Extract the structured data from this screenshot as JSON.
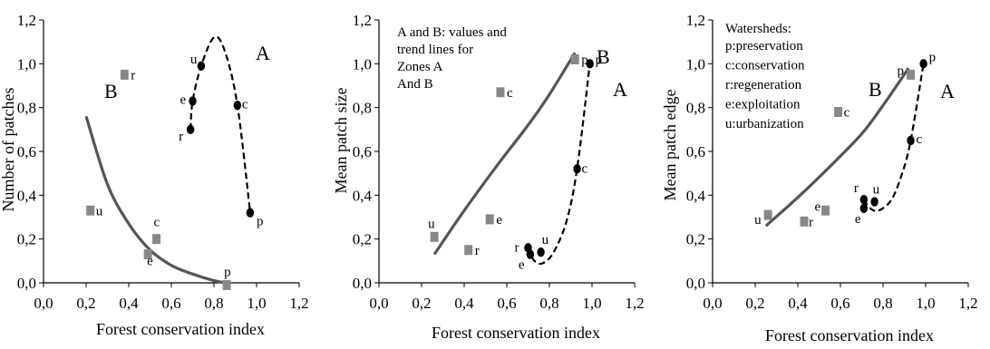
{
  "chart_data": [
    {
      "type": "scatter",
      "xlabel": "Forest conservation index",
      "ylabel": "Number of patches",
      "xlim": [
        0,
        1.2
      ],
      "ylim": [
        0,
        1.2
      ],
      "xticks": [
        "0,0",
        "0,2",
        "0,4",
        "0,6",
        "0,8",
        "1,0",
        "1,2"
      ],
      "yticks": [
        "0,0",
        "0,2",
        "0,4",
        "0,6",
        "0,8",
        "1,0",
        "1,2"
      ],
      "zone_labels": {
        "A": "A",
        "B": "B"
      },
      "series": [
        {
          "marker": "circle",
          "color": "#000000",
          "points": [
            {
              "label": "e",
              "x": 0.7,
              "y": 0.83
            },
            {
              "label": "r",
              "x": 0.69,
              "y": 0.7
            },
            {
              "label": "u",
              "x": 0.74,
              "y": 0.99
            },
            {
              "label": "c",
              "x": 0.91,
              "y": 0.81
            },
            {
              "label": "p",
              "x": 0.97,
              "y": 0.32
            }
          ],
          "trend": {
            "style": "dashed",
            "x": [
              0.69,
              0.7,
              0.74,
              0.8,
              0.85,
              0.91,
              0.97
            ],
            "y": [
              0.7,
              0.83,
              0.99,
              1.12,
              1.06,
              0.81,
              0.32
            ]
          }
        },
        {
          "marker": "square",
          "color": "#888888",
          "points": [
            {
              "label": "r",
              "x": 0.38,
              "y": 0.95
            },
            {
              "label": "u",
              "x": 0.22,
              "y": 0.33
            },
            {
              "label": "c",
              "x": 0.53,
              "y": 0.2
            },
            {
              "label": "e",
              "x": 0.49,
              "y": 0.13
            },
            {
              "label": "p",
              "x": 0.86,
              "y": -0.01
            }
          ],
          "trend": {
            "style": "solid",
            "x": [
              0.2,
              0.3,
              0.4,
              0.5,
              0.6,
              0.7,
              0.8,
              0.86
            ],
            "y": [
              0.76,
              0.45,
              0.27,
              0.15,
              0.08,
              0.04,
              0.01,
              0.0
            ]
          }
        }
      ]
    },
    {
      "type": "scatter",
      "xlabel": "Forest conservation index",
      "ylabel": "Mean patch size",
      "xlim": [
        0,
        1.2
      ],
      "ylim": [
        0,
        1.2
      ],
      "xticks": [
        "0,0",
        "0,2",
        "0,4",
        "0,6",
        "0,8",
        "1,0",
        "1,2"
      ],
      "yticks": [
        "0,0",
        "0,2",
        "0,4",
        "0,6",
        "0,8",
        "1,0",
        "1,2"
      ],
      "zone_labels": {
        "A": "A",
        "B": "B"
      },
      "note": [
        "A and B: values and",
        "trend lines for",
        "Zones A",
        "And B"
      ],
      "series": [
        {
          "marker": "circle",
          "color": "#000000",
          "points": [
            {
              "label": "r",
              "x": 0.7,
              "y": 0.16
            },
            {
              "label": "e",
              "x": 0.71,
              "y": 0.13
            },
            {
              "label": "u",
              "x": 0.76,
              "y": 0.14
            },
            {
              "label": "c",
              "x": 0.93,
              "y": 0.52
            },
            {
              "label": "p",
              "x": 0.99,
              "y": 1.0
            }
          ],
          "trend": {
            "style": "dashed",
            "x": [
              0.7,
              0.73,
              0.77,
              0.82,
              0.88,
              0.93,
              0.99
            ],
            "y": [
              0.16,
              0.1,
              0.09,
              0.14,
              0.28,
              0.52,
              1.0
            ]
          }
        },
        {
          "marker": "square",
          "color": "#888888",
          "points": [
            {
              "label": "u",
              "x": 0.26,
              "y": 0.21
            },
            {
              "label": "r",
              "x": 0.42,
              "y": 0.15
            },
            {
              "label": "e",
              "x": 0.52,
              "y": 0.29
            },
            {
              "label": "c",
              "x": 0.57,
              "y": 0.87
            },
            {
              "label": "p",
              "x": 0.92,
              "y": 1.02
            }
          ],
          "trend": {
            "style": "solid",
            "x": [
              0.26,
              0.4,
              0.55,
              0.7,
              0.8,
              0.92
            ],
            "y": [
              0.13,
              0.33,
              0.53,
              0.72,
              0.86,
              1.05
            ]
          }
        }
      ]
    },
    {
      "type": "scatter",
      "xlabel": "Forest conservation index",
      "ylabel": "Mean patch edge",
      "xlim": [
        0,
        1.2
      ],
      "ylim": [
        0,
        1.2
      ],
      "xticks": [
        "0,0",
        "0,2",
        "0,4",
        "0,6",
        "0,8",
        "1,0",
        "1,2"
      ],
      "yticks": [
        "0,0",
        "0,2",
        "0,4",
        "0,6",
        "0,8",
        "1,0",
        "1,2"
      ],
      "zone_labels": {
        "A": "A",
        "B": "B"
      },
      "legend_title": "Watersheds:",
      "legend": [
        {
          "code": "p",
          "name": "preservation"
        },
        {
          "code": "c",
          "name": "conservation"
        },
        {
          "code": "r",
          "name": "regeneration"
        },
        {
          "code": "e",
          "name": "exploitation"
        },
        {
          "code": "u",
          "name": "urbanization"
        }
      ],
      "series": [
        {
          "marker": "circle",
          "color": "#000000",
          "points": [
            {
              "label": "r",
              "x": 0.71,
              "y": 0.38
            },
            {
              "label": "e",
              "x": 0.71,
              "y": 0.34
            },
            {
              "label": "u",
              "x": 0.76,
              "y": 0.37
            },
            {
              "label": "c",
              "x": 0.93,
              "y": 0.65
            },
            {
              "label": "p",
              "x": 0.99,
              "y": 1.0
            }
          ],
          "trend": {
            "style": "dashed",
            "x": [
              0.71,
              0.74,
              0.78,
              0.84,
              0.89,
              0.93,
              0.99
            ],
            "y": [
              0.38,
              0.34,
              0.33,
              0.38,
              0.5,
              0.65,
              1.0
            ]
          }
        },
        {
          "marker": "square",
          "color": "#888888",
          "points": [
            {
              "label": "u",
              "x": 0.26,
              "y": 0.31
            },
            {
              "label": "r",
              "x": 0.43,
              "y": 0.28
            },
            {
              "label": "e",
              "x": 0.53,
              "y": 0.33
            },
            {
              "label": "c",
              "x": 0.59,
              "y": 0.78
            },
            {
              "label": "p",
              "x": 0.93,
              "y": 0.95
            }
          ],
          "trend": {
            "style": "solid",
            "x": [
              0.25,
              0.4,
              0.55,
              0.7,
              0.8,
              0.92
            ],
            "y": [
              0.26,
              0.39,
              0.53,
              0.68,
              0.81,
              0.98
            ]
          }
        }
      ]
    }
  ]
}
